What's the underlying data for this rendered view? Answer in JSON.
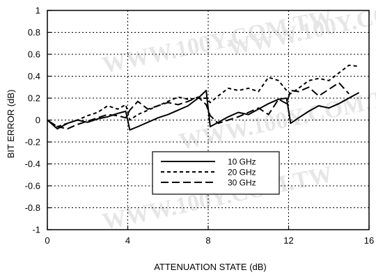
{
  "chart_data": {
    "type": "line",
    "xlabel": "ATTENUATION STATE (dB)",
    "ylabel": "BIT ERROR (dB)",
    "xlim": [
      0,
      16
    ],
    "ylim": [
      -1,
      1
    ],
    "x_ticks": [
      0,
      4,
      8,
      12,
      16
    ],
    "x_tick_labels": [
      "0",
      "4",
      "8",
      "12",
      "16"
    ],
    "y_ticks": [
      -1,
      -0.8,
      -0.6,
      -0.4,
      -0.2,
      0,
      0.2,
      0.4,
      0.6,
      0.8,
      1
    ],
    "y_tick_labels": [
      "-1",
      "-0.8",
      "-0.6",
      "-0.4",
      "-0.2",
      "0",
      "0.2",
      "0.4",
      "0.6",
      "0.8",
      "1"
    ],
    "grid": true,
    "legend_position": "lower-center",
    "watermark": "WWW.100Y.COM.TW",
    "series": [
      {
        "name": "10 GHz",
        "style": "solid",
        "x": [
          0,
          0.5,
          1,
          1.5,
          2,
          2.5,
          3,
          3.5,
          3.9,
          4.1,
          4.5,
          5,
          5.5,
          6,
          6.5,
          7,
          7.5,
          7.9,
          8.1,
          8.5,
          9,
          9.5,
          10,
          10.5,
          11,
          11.5,
          11.9,
          12.1,
          12.5,
          13,
          13.5,
          14,
          14.5,
          15,
          15.5
        ],
        "y": [
          0,
          -0.08,
          -0.03,
          0,
          -0.02,
          0.01,
          0.03,
          0.06,
          0.08,
          -0.09,
          -0.06,
          -0.02,
          0.02,
          0.05,
          0.09,
          0.13,
          0.2,
          0.27,
          -0.06,
          -0.02,
          0.03,
          0.07,
          0.05,
          0.1,
          0.15,
          0.19,
          0.2,
          -0.03,
          0.02,
          0.08,
          0.13,
          0.11,
          0.15,
          0.2,
          0.25
        ]
      },
      {
        "name": "20 GHz",
        "style": "short-dash",
        "x": [
          0,
          0.5,
          1,
          1.5,
          2,
          2.5,
          3,
          3.5,
          3.9,
          4.1,
          4.5,
          5,
          5.5,
          6,
          6.5,
          7,
          7.5,
          7.9,
          8.1,
          8.5,
          9,
          9.5,
          10,
          10.5,
          11,
          11.5,
          11.9,
          12.1,
          12.5,
          13,
          13.5,
          14,
          14.5,
          15,
          15.5
        ],
        "y": [
          0,
          -0.06,
          -0.03,
          0,
          0.04,
          0.07,
          0.13,
          0.1,
          0.14,
          0,
          0.05,
          0.09,
          0.13,
          0.17,
          0.21,
          0.19,
          0.2,
          0.2,
          0.16,
          0.22,
          0.29,
          0.27,
          0.29,
          0.26,
          0.39,
          0.36,
          0.27,
          0.24,
          0.29,
          0.36,
          0.38,
          0.36,
          0.43,
          0.5,
          0.49
        ]
      },
      {
        "name": "30 GHz",
        "style": "long-dash",
        "x": [
          0,
          0.5,
          1,
          1.5,
          2,
          2.5,
          3,
          3.5,
          3.9,
          4.1,
          4.5,
          5,
          5.5,
          6,
          6.5,
          7,
          7.5,
          7.9,
          8.1,
          8.5,
          9,
          9.5,
          10,
          10.5,
          11,
          11.5,
          11.9,
          12.1,
          12.5,
          13,
          13.5,
          14,
          14.5,
          15
        ],
        "y": [
          0,
          -0.06,
          -0.08,
          -0.04,
          -0.01,
          0.02,
          0.05,
          0.04,
          0.02,
          0.09,
          0.17,
          0.1,
          0.13,
          0.16,
          0.14,
          0.17,
          0.21,
          0.14,
          0.04,
          -0.03,
          0,
          0.03,
          0.07,
          0.11,
          0.05,
          0.19,
          0.15,
          0.27,
          0.26,
          0.3,
          0.22,
          0.28,
          0.34,
          0.24
        ]
      }
    ]
  }
}
